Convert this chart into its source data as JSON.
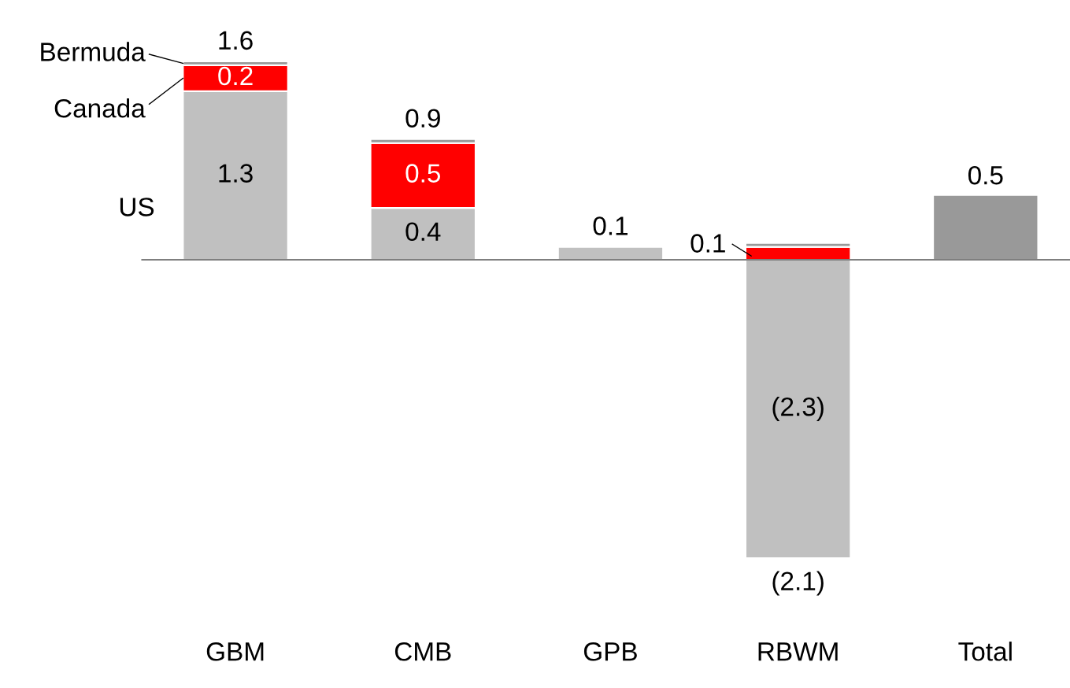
{
  "chart_data": {
    "type": "bar",
    "stacked": true,
    "categories": [
      "GBM",
      "CMB",
      "GPB",
      "RBWM",
      "Total"
    ],
    "series": [
      {
        "name": "US",
        "color": "#c0c0c0",
        "values": [
          1.3,
          0.4,
          0.1,
          -2.3,
          null
        ],
        "value_labels": [
          "1.3",
          "0.4",
          null,
          "(2.3)",
          null
        ]
      },
      {
        "name": "Canada",
        "color": "#ff0000",
        "values": [
          0.2,
          0.5,
          null,
          0.1,
          null
        ],
        "value_labels": [
          "0.2",
          "0.5",
          null,
          "0.1",
          null
        ]
      },
      {
        "name": "Bermuda",
        "color": "#999999",
        "values": [
          0.03,
          0.03,
          null,
          0.03,
          null
        ]
      },
      {
        "color": "#999999",
        "values": [
          null,
          null,
          null,
          null,
          0.5
        ],
        "value_labels": [
          null,
          null,
          null,
          null,
          "0.5"
        ]
      }
    ],
    "totals": [
      "1.6",
      "0.9",
      "0.1",
      "(2.1)",
      null
    ]
  }
}
